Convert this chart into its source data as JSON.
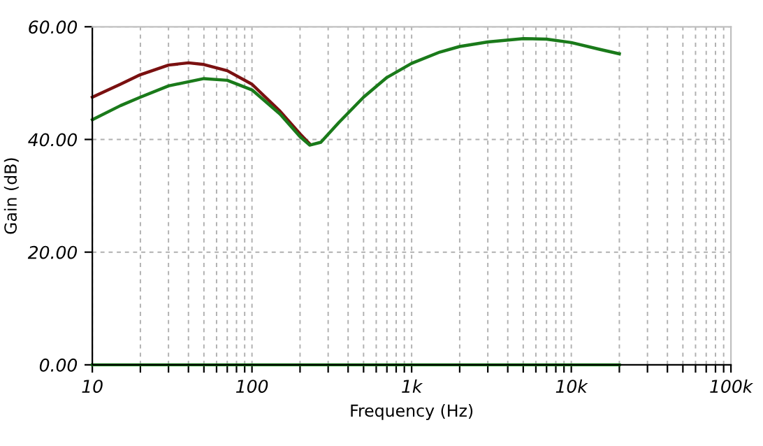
{
  "chart_data": {
    "type": "line",
    "xlabel": "Frequency (Hz)",
    "ylabel": "Gain (dB)",
    "log": "x",
    "xlim": [
      10,
      100000
    ],
    "ylim": [
      0,
      60
    ],
    "xticks": [
      {
        "value": 10,
        "label": "10"
      },
      {
        "value": 20,
        "label": null
      },
      {
        "value": 30,
        "label": null
      },
      {
        "value": 40,
        "label": null
      },
      {
        "value": 50,
        "label": null
      },
      {
        "value": 60,
        "label": null
      },
      {
        "value": 70,
        "label": null
      },
      {
        "value": 80,
        "label": null
      },
      {
        "value": 90,
        "label": null
      },
      {
        "value": 100,
        "label": "100"
      },
      {
        "value": 200,
        "label": null
      },
      {
        "value": 300,
        "label": null
      },
      {
        "value": 400,
        "label": null
      },
      {
        "value": 500,
        "label": null
      },
      {
        "value": 600,
        "label": null
      },
      {
        "value": 700,
        "label": null
      },
      {
        "value": 800,
        "label": null
      },
      {
        "value": 900,
        "label": null
      },
      {
        "value": 1000,
        "label": "1k"
      },
      {
        "value": 2000,
        "label": null
      },
      {
        "value": 3000,
        "label": null
      },
      {
        "value": 4000,
        "label": null
      },
      {
        "value": 5000,
        "label": null
      },
      {
        "value": 6000,
        "label": null
      },
      {
        "value": 7000,
        "label": null
      },
      {
        "value": 8000,
        "label": null
      },
      {
        "value": 9000,
        "label": null
      },
      {
        "value": 10000,
        "label": "10k"
      },
      {
        "value": 20000,
        "label": null
      },
      {
        "value": 30000,
        "label": null
      },
      {
        "value": 40000,
        "label": null
      },
      {
        "value": 50000,
        "label": null
      },
      {
        "value": 60000,
        "label": null
      },
      {
        "value": 70000,
        "label": null
      },
      {
        "value": 80000,
        "label": null
      },
      {
        "value": 90000,
        "label": null
      },
      {
        "value": 100000,
        "label": "100k"
      }
    ],
    "yticks": [
      {
        "value": 0,
        "label": "0.00"
      },
      {
        "value": 20,
        "label": "20.00"
      },
      {
        "value": 40,
        "label": "40.00"
      },
      {
        "value": 60,
        "label": "60.00"
      }
    ],
    "grid": true,
    "marker": "none",
    "line_style": "solid",
    "series": [
      {
        "color": "#7a1010",
        "x": [
          10,
          15,
          20,
          30,
          40,
          50,
          70,
          100,
          150,
          200,
          230
        ],
        "values": [
          47.5,
          49.8,
          51.5,
          53.2,
          53.6,
          53.3,
          52.2,
          49.8,
          45,
          41,
          39.2
        ]
      },
      {
        "color": "#1a7a1a",
        "x": [
          10,
          15,
          20,
          30,
          50,
          70,
          100,
          150,
          200,
          230,
          270,
          350,
          500,
          700,
          1000,
          1500,
          2000,
          3000,
          5000,
          7000,
          10000,
          15000,
          20000
        ],
        "values": [
          43.5,
          46,
          47.5,
          49.5,
          50.8,
          50.5,
          48.8,
          44.5,
          40.5,
          39,
          39.5,
          43,
          47.5,
          51,
          53.5,
          55.5,
          56.5,
          57.3,
          57.9,
          57.8,
          57.2,
          56,
          55.2
        ]
      },
      {
        "color": "#1a8a1a",
        "x": [
          10,
          20000
        ],
        "values": [
          0,
          0
        ]
      }
    ]
  }
}
